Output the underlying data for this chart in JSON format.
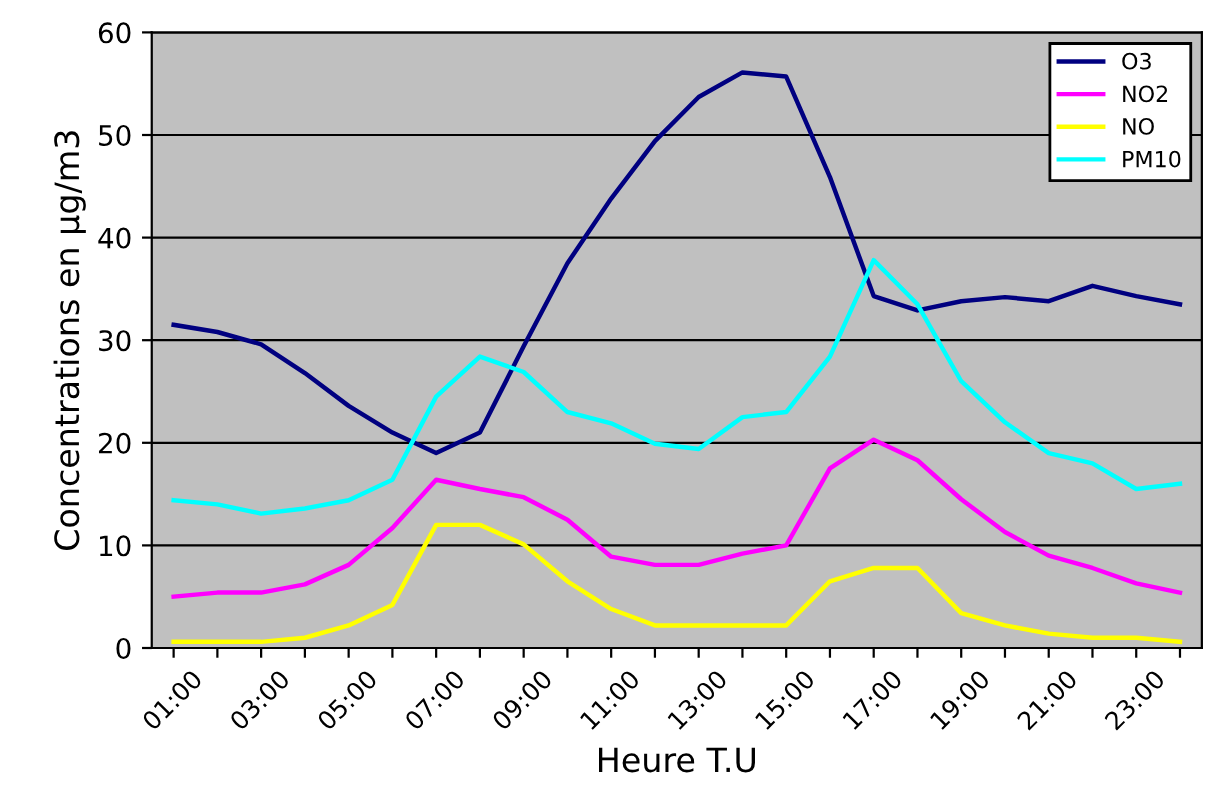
{
  "chart_data": {
    "type": "line",
    "xlabel": "Heure T.U",
    "ylabel": "Concentrations en µg/m3",
    "categories": [
      "01:00",
      null,
      "03:00",
      null,
      "05:00",
      null,
      "07:00",
      null,
      "09:00",
      null,
      "11:00",
      null,
      "13:00",
      null,
      "15:00",
      null,
      "17:00",
      null,
      "19:00",
      null,
      "21:00",
      null,
      "23:00",
      null
    ],
    "series": [
      {
        "name": "O3",
        "color": "#000080",
        "values": [
          31.5,
          30.8,
          29.6,
          26.8,
          23.6,
          21.0,
          19.0,
          21.0,
          29.4,
          37.5,
          43.8,
          49.4,
          53.7,
          56.1,
          55.7,
          45.9,
          34.3,
          32.9,
          33.8,
          34.2,
          33.8,
          35.3,
          34.3,
          33.5
        ]
      },
      {
        "name": "NO2",
        "color": "#ff00ff",
        "values": [
          5.0,
          5.4,
          5.4,
          6.2,
          8.1,
          11.7,
          16.4,
          15.5,
          14.7,
          12.5,
          8.9,
          8.1,
          8.1,
          9.2,
          10.0,
          17.5,
          20.3,
          18.3,
          14.5,
          11.3,
          9.0,
          7.8,
          6.3,
          5.4
        ]
      },
      {
        "name": "NO",
        "color": "#ffff00",
        "values": [
          0.6,
          0.6,
          0.6,
          1.0,
          2.2,
          4.2,
          12.0,
          12.0,
          10.1,
          6.5,
          3.8,
          2.2,
          2.2,
          2.2,
          2.2,
          6.5,
          7.8,
          7.8,
          3.4,
          2.2,
          1.4,
          1.0,
          1.0,
          0.6
        ]
      },
      {
        "name": "PM10",
        "color": "#00ffff",
        "values": [
          14.4,
          14.0,
          13.1,
          13.6,
          14.4,
          16.4,
          24.5,
          28.4,
          26.9,
          23.0,
          21.9,
          19.9,
          19.4,
          22.5,
          23.0,
          28.4,
          37.8,
          33.5,
          26.0,
          22.0,
          19.0,
          18.0,
          15.5,
          16.0
        ]
      }
    ],
    "ylim": [
      0,
      60
    ],
    "yticks": [
      0,
      10,
      20,
      30,
      40,
      50,
      60
    ],
    "grid": "y",
    "legend": "top right",
    "marker": "none",
    "line_style": "solid"
  }
}
